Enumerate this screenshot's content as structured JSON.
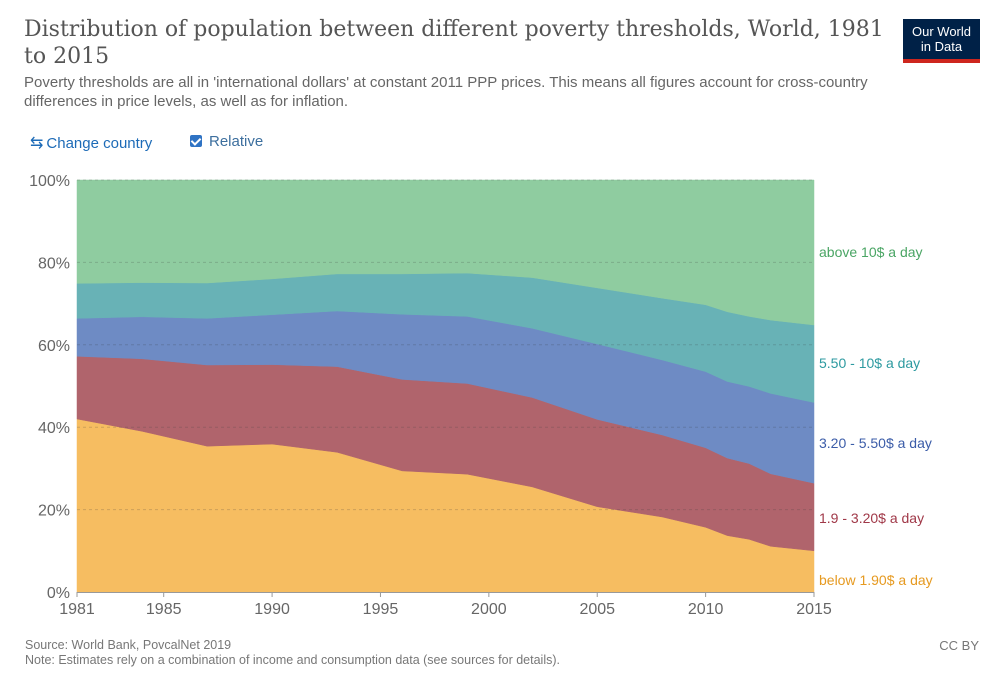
{
  "header": {
    "title": "Distribution of population between different poverty thresholds, World, 1981 to 2015",
    "subtitle": "Poverty thresholds are all in 'international dollars' at constant 2011 PPP prices. This means all figures account for cross-country differences in price levels, as well as for inflation.",
    "logo_line1": "Our World",
    "logo_line2": "in Data",
    "logo_colors": {
      "background": "#002147",
      "stripe": "#ce261e"
    }
  },
  "controls": {
    "change_country_icon": "swap-arrows-icon",
    "change_country_label": "Change country",
    "relative_label": "Relative",
    "relative_checked": true
  },
  "footer": {
    "source": "Source: World Bank, PovcalNet 2019",
    "note": "Note: Estimates rely on a combination of income and consumption data (see sources for details).",
    "license": "CC BY"
  },
  "chart_data": {
    "type": "area",
    "stacked": true,
    "relative": true,
    "x": [
      1981,
      1984,
      1987,
      1990,
      1993,
      1996,
      1999,
      2002,
      2005,
      2008,
      2010,
      2011,
      2012,
      2013,
      2015
    ],
    "x_ticks": [
      1981,
      1985,
      1990,
      1995,
      2000,
      2005,
      2010,
      2015
    ],
    "y_ticks": [
      0,
      20,
      40,
      60,
      80,
      100
    ],
    "y_tick_suffix": "%",
    "ylim": [
      0,
      100
    ],
    "grid": "horizontal dashed",
    "legend": "right (series labels at end of areas)",
    "series": [
      {
        "name": "below 1.90$ a day",
        "color": "#f6bd61",
        "label_color": "#e69a21",
        "values": [
          42,
          39,
          35.4,
          35.9,
          33.9,
          29.4,
          28.6,
          25.5,
          20.7,
          18.2,
          15.7,
          13.7,
          12.8,
          11.1,
          10.0
        ]
      },
      {
        "name": "1.9 - 3.20$ a day",
        "color": "#b0646c",
        "label_color": "#a03848",
        "values": [
          15.2,
          17.6,
          19.7,
          19.3,
          20.8,
          22.2,
          22.0,
          21.7,
          21.2,
          19.9,
          19.3,
          18.8,
          18.4,
          17.6,
          16.4
        ]
      },
      {
        "name": "3.20 - 5.50$ a day",
        "color": "#6e8bc4",
        "label_color": "#3b5ca8",
        "values": [
          9.2,
          10.2,
          11.3,
          12.1,
          13.5,
          15.8,
          16.3,
          16.8,
          18.3,
          18.2,
          18.5,
          18.6,
          18.7,
          19.5,
          19.6
        ]
      },
      {
        "name": "5.50 - 10$ a day",
        "color": "#68b2b6",
        "label_color": "#2d9aa0",
        "values": [
          8.5,
          8.3,
          8.6,
          8.7,
          9.0,
          9.8,
          10.5,
          12.3,
          13.6,
          15.0,
          16.2,
          16.9,
          17.0,
          17.8,
          18.8
        ]
      },
      {
        "name": "above 10$ a day",
        "color": "#8fcca0",
        "label_color": "#4aa564",
        "values": [
          25.1,
          24.9,
          25.0,
          24.0,
          22.8,
          22.8,
          22.6,
          23.7,
          26.2,
          28.7,
          30.3,
          32.0,
          33.1,
          34.0,
          35.2
        ]
      }
    ]
  }
}
